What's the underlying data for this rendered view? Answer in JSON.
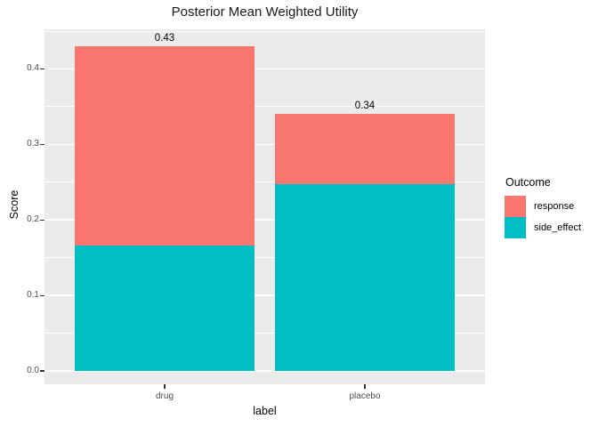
{
  "title": "Posterior Mean Weighted Utility",
  "chart_data": {
    "type": "bar",
    "stacked": true,
    "title": "Posterior Mean Weighted Utility",
    "xlabel": "label",
    "ylabel": "Score",
    "categories": [
      "drug",
      "placebo"
    ],
    "series": [
      {
        "name": "response",
        "color": "#F8766D",
        "values": [
          0.264,
          0.093
        ]
      },
      {
        "name": "side_effect",
        "color": "#00BFC4",
        "values": [
          0.166,
          0.247
        ]
      }
    ],
    "stack_order_bottom_to_top": [
      "side_effect",
      "response"
    ],
    "totals": [
      0.43,
      0.34
    ],
    "total_labels": [
      "0.43",
      "0.34"
    ],
    "ylim": [
      0,
      0.452
    ],
    "yticks": [
      0,
      0.1,
      0.2,
      0.3,
      0.4
    ],
    "ytick_labels": [
      "0.0",
      "0.1",
      "0.2",
      "0.3",
      "0.4"
    ],
    "yticks_minor": [
      0.05,
      0.15,
      0.25,
      0.35,
      0.45
    ],
    "grid": true,
    "legend": {
      "title": "Outcome",
      "position": "right",
      "items": [
        {
          "label": "response",
          "color": "#F8766D"
        },
        {
          "label": "side_effect",
          "color": "#00BFC4"
        }
      ]
    },
    "panel_background": "#EBEBEB",
    "grid_color": "#FFFFFF",
    "tick_color": "#333333",
    "tick_label_color": "#4D4D4D",
    "text_color": "#000000"
  }
}
